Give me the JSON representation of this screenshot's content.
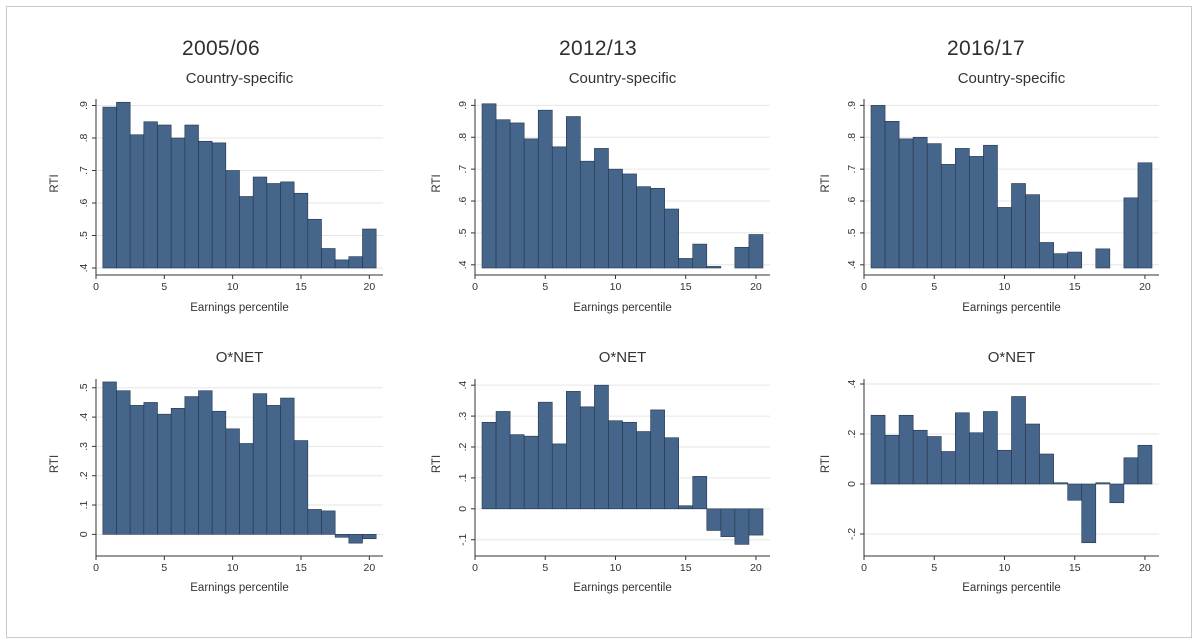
{
  "columns": [
    "2005/06",
    "2012/13",
    "2016/17"
  ],
  "chart_data": [
    {
      "type": "bar",
      "period": "2005/06",
      "title": "Country-specific",
      "xlabel": "Earnings percentile",
      "ylabel": "RTI",
      "xlim": [
        0,
        21
      ],
      "ylim": [
        0.4,
        0.92
      ],
      "xticks": [
        0,
        5,
        10,
        15,
        20
      ],
      "yticks": [
        0.4,
        0.5,
        0.6,
        0.7,
        0.8,
        0.9
      ],
      "ytick_labels": [
        ".4",
        ".5",
        ".6",
        ".7",
        ".8",
        ".9"
      ],
      "x": [
        1,
        2,
        3,
        4,
        5,
        6,
        7,
        8,
        9,
        10,
        11,
        12,
        13,
        14,
        15,
        16,
        17,
        18,
        19,
        20
      ],
      "values": [
        0.895,
        0.91,
        0.81,
        0.85,
        0.84,
        0.8,
        0.84,
        0.79,
        0.785,
        0.7,
        0.62,
        0.68,
        0.66,
        0.665,
        0.63,
        0.55,
        0.46,
        0.425,
        0.435,
        0.52
      ]
    },
    {
      "type": "bar",
      "period": "2012/13",
      "title": "Country-specific",
      "xlabel": "Earnings percentile",
      "ylabel": "RTI",
      "xlim": [
        0,
        21
      ],
      "ylim": [
        0.39,
        0.92
      ],
      "xticks": [
        0,
        5,
        10,
        15,
        20
      ],
      "yticks": [
        0.4,
        0.5,
        0.6,
        0.7,
        0.8,
        0.9
      ],
      "ytick_labels": [
        ".4",
        ".5",
        ".6",
        ".7",
        ".8",
        ".9"
      ],
      "x": [
        1,
        2,
        3,
        4,
        5,
        6,
        7,
        8,
        9,
        10,
        11,
        12,
        13,
        14,
        15,
        16,
        17,
        18,
        19,
        20
      ],
      "values": [
        0.905,
        0.855,
        0.845,
        0.795,
        0.885,
        0.77,
        0.865,
        0.725,
        0.765,
        0.7,
        0.685,
        0.645,
        0.64,
        0.575,
        0.42,
        0.465,
        0.395,
        null,
        0.455,
        0.495
      ]
    },
    {
      "type": "bar",
      "period": "2016/17",
      "title": "Country-specific",
      "xlabel": "Earnings percentile",
      "ylabel": "RTI",
      "xlim": [
        0,
        21
      ],
      "ylim": [
        0.39,
        0.92
      ],
      "xticks": [
        0,
        5,
        10,
        15,
        20
      ],
      "yticks": [
        0.4,
        0.5,
        0.6,
        0.7,
        0.8,
        0.9
      ],
      "ytick_labels": [
        ".4",
        ".5",
        ".6",
        ".7",
        ".8",
        ".9"
      ],
      "x": [
        1,
        2,
        3,
        4,
        5,
        6,
        7,
        8,
        9,
        10,
        11,
        12,
        13,
        14,
        15,
        16,
        17,
        18,
        19,
        20
      ],
      "values": [
        0.9,
        0.85,
        0.795,
        0.8,
        0.78,
        0.715,
        0.765,
        0.74,
        0.775,
        0.58,
        0.655,
        0.62,
        0.47,
        0.435,
        0.44,
        null,
        0.45,
        null,
        0.61,
        0.72
      ]
    },
    {
      "type": "bar",
      "period": "2005/06",
      "title": "O*NET",
      "xlabel": "Earnings percentile",
      "ylabel": "RTI",
      "xlim": [
        0,
        21
      ],
      "ylim": [
        -0.05,
        0.53
      ],
      "xticks": [
        0,
        5,
        10,
        15,
        20
      ],
      "yticks": [
        0,
        0.1,
        0.2,
        0.3,
        0.4,
        0.5
      ],
      "ytick_labels": [
        "0",
        ".1",
        ".2",
        ".3",
        ".4",
        ".5"
      ],
      "x": [
        1,
        2,
        3,
        4,
        5,
        6,
        7,
        8,
        9,
        10,
        11,
        12,
        13,
        14,
        15,
        16,
        17,
        18,
        19,
        20
      ],
      "values": [
        0.52,
        0.49,
        0.44,
        0.45,
        0.41,
        0.43,
        0.47,
        0.49,
        0.42,
        0.36,
        0.31,
        0.48,
        0.44,
        0.465,
        0.32,
        0.085,
        0.08,
        -0.01,
        -0.03,
        -0.015
      ]
    },
    {
      "type": "bar",
      "period": "2012/13",
      "title": "O*NET",
      "xlabel": "Earnings percentile",
      "ylabel": "RTI",
      "xlim": [
        0,
        21
      ],
      "ylim": [
        -0.13,
        0.42
      ],
      "xticks": [
        0,
        5,
        10,
        15,
        20
      ],
      "yticks": [
        -0.1,
        0,
        0.1,
        0.2,
        0.3,
        0.4
      ],
      "ytick_labels": [
        "-.1",
        "0",
        ".1",
        ".2",
        ".3",
        ".4"
      ],
      "x": [
        1,
        2,
        3,
        4,
        5,
        6,
        7,
        8,
        9,
        10,
        11,
        12,
        13,
        14,
        15,
        16,
        17,
        18,
        19,
        20
      ],
      "values": [
        0.28,
        0.315,
        0.24,
        0.235,
        0.345,
        0.21,
        0.38,
        0.33,
        0.4,
        0.285,
        0.28,
        0.25,
        0.32,
        0.23,
        0.01,
        0.105,
        -0.07,
        -0.09,
        -0.115,
        -0.085
      ]
    },
    {
      "type": "bar",
      "period": "2016/17",
      "title": "O*NET",
      "xlabel": "Earnings percentile",
      "ylabel": "RTI",
      "xlim": [
        0,
        21
      ],
      "ylim": [
        -0.26,
        0.42
      ],
      "xticks": [
        0,
        5,
        10,
        15,
        20
      ],
      "yticks": [
        -0.2,
        0,
        0.2,
        0.4
      ],
      "ytick_labels": [
        "-.2",
        "0",
        ".2",
        ".4"
      ],
      "x": [
        1,
        2,
        3,
        4,
        5,
        6,
        7,
        8,
        9,
        10,
        11,
        12,
        13,
        14,
        15,
        16,
        17,
        18,
        19,
        20
      ],
      "values": [
        0.275,
        0.195,
        0.275,
        0.215,
        0.19,
        0.13,
        0.285,
        0.205,
        0.29,
        0.135,
        0.35,
        0.24,
        0.12,
        0.005,
        -0.065,
        -0.235,
        0.005,
        -0.075,
        0.105,
        0.155
      ]
    }
  ]
}
